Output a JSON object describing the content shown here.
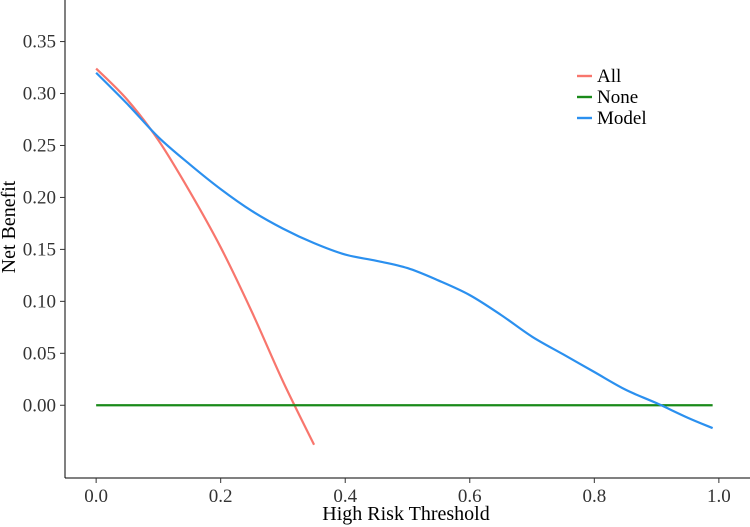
{
  "chart_data": {
    "type": "line",
    "title": "",
    "xlabel": "High Risk Threshold",
    "ylabel": "Net Benefit",
    "xlim": [
      -0.05,
      1.05
    ],
    "ylim": [
      -0.07,
      0.39
    ],
    "x_ticks": [
      0.0,
      0.2,
      0.4,
      0.6,
      0.8,
      1.0
    ],
    "x_tick_labels": [
      "0.0",
      "0.2",
      "0.4",
      "0.6",
      "0.8",
      "1.0"
    ],
    "y_ticks": [
      0.0,
      0.05,
      0.1,
      0.15,
      0.2,
      0.25,
      0.3,
      0.35
    ],
    "y_tick_labels": [
      "0.00",
      "0.05",
      "0.10",
      "0.15",
      "0.20",
      "0.25",
      "0.30",
      "0.35"
    ],
    "grid": false,
    "legend_position": "top-right",
    "series": [
      {
        "name": "All",
        "color": "#f8766d",
        "x": [
          0.0,
          0.05,
          0.1,
          0.15,
          0.2,
          0.25,
          0.3,
          0.35
        ],
        "y": [
          0.324,
          0.294,
          0.255,
          0.206,
          0.152,
          0.09,
          0.023,
          -0.038
        ]
      },
      {
        "name": "None",
        "color": "#1a8a1a",
        "x": [
          0.0,
          0.99
        ],
        "y": [
          0.0,
          0.0
        ]
      },
      {
        "name": "Model",
        "color": "#2b90ef",
        "x": [
          0.0,
          0.05,
          0.1,
          0.15,
          0.2,
          0.25,
          0.3,
          0.35,
          0.4,
          0.45,
          0.5,
          0.55,
          0.6,
          0.65,
          0.7,
          0.75,
          0.8,
          0.85,
          0.9,
          0.95,
          0.99
        ],
        "y": [
          0.32,
          0.29,
          0.258,
          0.232,
          0.208,
          0.187,
          0.17,
          0.156,
          0.145,
          0.139,
          0.132,
          0.12,
          0.106,
          0.087,
          0.066,
          0.049,
          0.032,
          0.015,
          0.002,
          -0.012,
          -0.022
        ]
      }
    ]
  }
}
